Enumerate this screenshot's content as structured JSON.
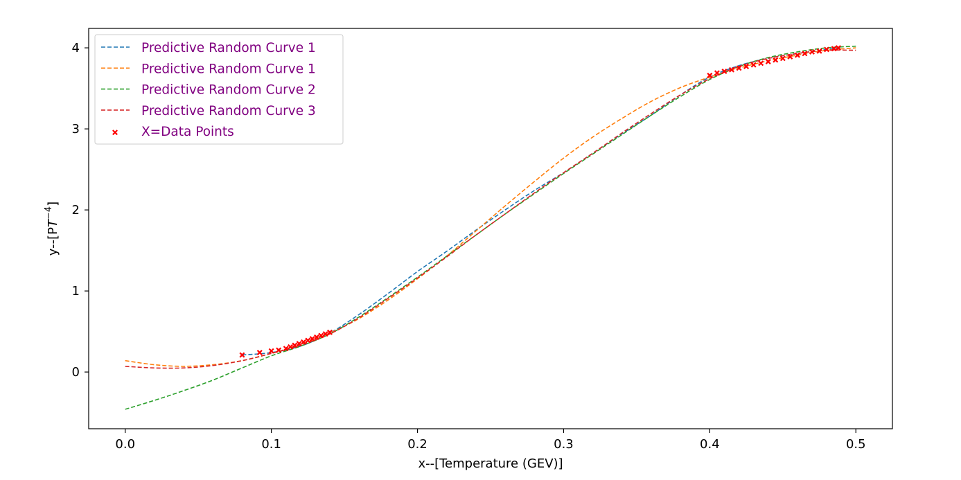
{
  "chart_data": {
    "type": "line",
    "title": "",
    "xlabel": "x--[Temperature (GEV)]",
    "ylabel": "y--[P",
    "ylabel_italic": "T",
    "ylabel_sup": "−4",
    "ylabel_close": "]",
    "xlim": [
      -0.025,
      0.525
    ],
    "ylim": [
      -0.7,
      4.24
    ],
    "xticks": [
      0.0,
      0.1,
      0.2,
      0.3,
      0.4,
      0.5
    ],
    "xtick_labels": [
      "0.0",
      "0.1",
      "0.2",
      "0.3",
      "0.4",
      "0.5"
    ],
    "yticks": [
      0,
      1,
      2,
      3,
      4
    ],
    "ytick_labels": [
      "0",
      "1",
      "2",
      "3",
      "4"
    ],
    "grid": false,
    "legend_position": "top-left",
    "series": [
      {
        "name": "Predictive Random Curve 1",
        "color": "#1f77b4",
        "style": "dashed",
        "x": [
          0.08,
          0.1,
          0.12,
          0.14,
          0.16,
          0.18,
          0.2,
          0.22,
          0.24,
          0.26,
          0.28,
          0.3,
          0.32,
          0.34,
          0.36,
          0.38,
          0.4,
          0.42,
          0.44,
          0.46,
          0.48,
          0.49
        ],
        "y": [
          0.21,
          0.24,
          0.32,
          0.48,
          0.71,
          0.97,
          1.24,
          1.49,
          1.75,
          2.0,
          2.24,
          2.46,
          2.7,
          2.94,
          3.17,
          3.42,
          3.64,
          3.78,
          3.87,
          3.93,
          3.98,
          4.0
        ]
      },
      {
        "name": "Predictive Random Curve 1",
        "color": "#ff7f0e",
        "style": "dashed",
        "x": [
          0.0,
          0.02,
          0.04,
          0.06,
          0.08,
          0.1,
          0.12,
          0.14,
          0.16,
          0.18,
          0.2,
          0.22,
          0.24,
          0.26,
          0.28,
          0.3,
          0.32,
          0.34,
          0.36,
          0.38,
          0.4,
          0.42,
          0.44,
          0.46,
          0.48,
          0.5
        ],
        "y": [
          0.14,
          0.09,
          0.07,
          0.09,
          0.14,
          0.23,
          0.34,
          0.48,
          0.66,
          0.89,
          1.15,
          1.43,
          1.74,
          2.05,
          2.35,
          2.64,
          2.9,
          3.13,
          3.34,
          3.51,
          3.64,
          3.75,
          3.84,
          3.91,
          3.97,
          4.0
        ]
      },
      {
        "name": "Predictive Random Curve 2",
        "color": "#2ca02c",
        "style": "dashed",
        "x": [
          0.0,
          0.02,
          0.04,
          0.06,
          0.08,
          0.1,
          0.12,
          0.14,
          0.16,
          0.18,
          0.2,
          0.22,
          0.24,
          0.26,
          0.28,
          0.3,
          0.32,
          0.34,
          0.36,
          0.38,
          0.4,
          0.42,
          0.44,
          0.46,
          0.48,
          0.5
        ],
        "y": [
          -0.46,
          -0.35,
          -0.23,
          -0.1,
          0.05,
          0.2,
          0.32,
          0.47,
          0.68,
          0.92,
          1.17,
          1.43,
          1.69,
          1.95,
          2.2,
          2.45,
          2.69,
          2.93,
          3.17,
          3.4,
          3.61,
          3.77,
          3.88,
          3.95,
          4.0,
          4.02
        ]
      },
      {
        "name": "Predictive Random Curve 3",
        "color": "#d62728",
        "style": "dashed",
        "x": [
          0.0,
          0.02,
          0.04,
          0.06,
          0.08,
          0.1,
          0.12,
          0.14,
          0.16,
          0.18,
          0.2,
          0.22,
          0.24,
          0.26,
          0.28,
          0.3,
          0.32,
          0.34,
          0.36,
          0.38,
          0.4,
          0.42,
          0.44,
          0.46,
          0.48,
          0.5
        ],
        "y": [
          0.07,
          0.05,
          0.05,
          0.08,
          0.14,
          0.23,
          0.33,
          0.47,
          0.67,
          0.91,
          1.16,
          1.42,
          1.69,
          1.95,
          2.21,
          2.46,
          2.7,
          2.95,
          3.19,
          3.42,
          3.62,
          3.77,
          3.87,
          3.93,
          3.97,
          3.97
        ]
      }
    ],
    "scatter": {
      "name": "X=Data Points",
      "color": "#ff0000",
      "marker": "x",
      "x": [
        0.08,
        0.092,
        0.1,
        0.105,
        0.11,
        0.113,
        0.116,
        0.119,
        0.122,
        0.125,
        0.128,
        0.131,
        0.134,
        0.137,
        0.14,
        0.4,
        0.405,
        0.41,
        0.415,
        0.42,
        0.425,
        0.43,
        0.435,
        0.44,
        0.445,
        0.45,
        0.455,
        0.46,
        0.465,
        0.47,
        0.475,
        0.48,
        0.485,
        0.488
      ],
      "y": [
        0.21,
        0.24,
        0.26,
        0.27,
        0.29,
        0.31,
        0.33,
        0.35,
        0.37,
        0.39,
        0.41,
        0.43,
        0.45,
        0.47,
        0.49,
        3.66,
        3.69,
        3.71,
        3.73,
        3.75,
        3.77,
        3.79,
        3.81,
        3.83,
        3.85,
        3.87,
        3.89,
        3.91,
        3.93,
        3.95,
        3.96,
        3.98,
        3.99,
        4.0
      ]
    }
  }
}
